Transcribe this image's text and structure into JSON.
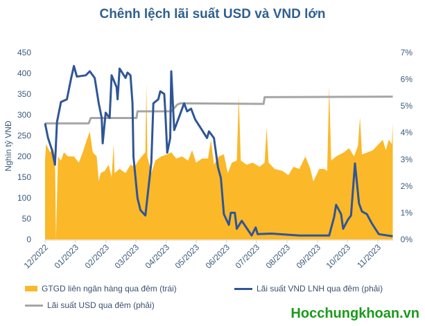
{
  "chart_data": {
    "type": "area+line",
    "title": "Chênh lệch lãi suất USD và VND lớn",
    "ylabel_left": "Nghìn tỷ VNĐ",
    "ylim_left": [
      0,
      450
    ],
    "yticks_left": [
      "0",
      "50",
      "100",
      "150",
      "200",
      "250",
      "300",
      "350",
      "400",
      "450"
    ],
    "ylim_right": [
      0,
      7
    ],
    "yticks_right": [
      "0%",
      "1%",
      "2%",
      "3%",
      "4%",
      "5%",
      "6%",
      "7%"
    ],
    "xlim": [
      "2022-12-01",
      "2023-11-16"
    ],
    "xticks": [
      "12/2022",
      "01/2023",
      "02/2023",
      "03/2023",
      "04/2023",
      "05/2023",
      "06/2023",
      "07/2023",
      "08/2023",
      "09/2023",
      "10/2023",
      "11/2023"
    ],
    "grid": false,
    "legend_position": "bottom",
    "colors": {
      "area": "#fbb829",
      "vnd": "#2f5597",
      "usd": "#a5a5a5",
      "title": "#2f5f8f"
    },
    "series": [
      {
        "name": "GTGD liên ngân hàng qua đêm (trái)",
        "axis": "left",
        "kind": "area",
        "x": [
          "2022-12-01",
          "2022-12-02",
          "2022-12-06",
          "2022-12-09",
          "2022-12-11",
          "2022-12-12",
          "2022-12-14",
          "2022-12-17",
          "2022-12-20",
          "2022-12-24",
          "2022-12-30",
          "2023-01-04",
          "2023-01-08",
          "2023-01-12",
          "2023-01-15",
          "2023-01-18",
          "2023-01-22",
          "2023-01-24",
          "2023-01-26",
          "2023-01-30",
          "2023-02-03",
          "2023-02-06",
          "2023-02-08",
          "2023-02-09",
          "2023-02-14",
          "2023-02-20",
          "2023-02-25",
          "2023-03-01",
          "2023-03-05",
          "2023-03-10",
          "2023-03-12",
          "2023-03-13",
          "2023-03-14",
          "2023-03-18",
          "2023-03-22",
          "2023-03-28",
          "2023-04-03",
          "2023-04-07",
          "2023-04-12",
          "2023-04-18",
          "2023-04-24",
          "2023-04-28",
          "2023-05-02",
          "2023-05-08",
          "2023-05-14",
          "2023-05-17",
          "2023-05-20",
          "2023-05-25",
          "2023-05-30",
          "2023-06-03",
          "2023-06-07",
          "2023-06-12",
          "2023-06-14",
          "2023-06-16",
          "2023-06-22",
          "2023-06-28",
          "2023-07-05",
          "2023-07-10",
          "2023-07-12",
          "2023-07-14",
          "2023-07-20",
          "2023-07-28",
          "2023-08-03",
          "2023-08-08",
          "2023-08-14",
          "2023-08-20",
          "2023-08-25",
          "2023-08-28",
          "2023-09-03",
          "2023-09-08",
          "2023-09-11",
          "2023-09-13",
          "2023-09-15",
          "2023-09-20",
          "2023-09-28",
          "2023-10-03",
          "2023-10-08",
          "2023-10-12",
          "2023-10-14",
          "2023-10-16",
          "2023-10-22",
          "2023-10-27",
          "2023-11-02",
          "2023-11-06",
          "2023-11-09",
          "2023-11-12",
          "2023-11-15",
          "2023-11-16"
        ],
        "values": [
          190,
          230,
          210,
          220,
          200,
          0,
          200,
          190,
          210,
          200,
          200,
          185,
          210,
          240,
          260,
          210,
          200,
          140,
          160,
          165,
          180,
          150,
          230,
          160,
          170,
          160,
          180,
          175,
          190,
          205,
          210,
          375,
          200,
          160,
          190,
          200,
          205,
          210,
          195,
          200,
          190,
          215,
          185,
          195,
          195,
          240,
          180,
          200,
          205,
          160,
          185,
          190,
          345,
          190,
          180,
          185,
          175,
          185,
          270,
          185,
          170,
          165,
          155,
          175,
          170,
          200,
          170,
          140,
          170,
          170,
          165,
          370,
          190,
          200,
          210,
          220,
          200,
          225,
          295,
          205,
          210,
          215,
          230,
          240,
          215,
          240,
          230,
          280
        ]
      },
      {
        "name": "Lãi suất VND LNH qua đêm (phải)",
        "axis": "right",
        "kind": "line",
        "x": [
          "2022-12-01",
          "2022-12-04",
          "2022-12-08",
          "2022-12-11",
          "2022-12-13",
          "2022-12-17",
          "2022-12-23",
          "2022-12-27",
          "2022-12-30",
          "2023-01-02",
          "2023-01-11",
          "2023-01-15",
          "2023-01-20",
          "2023-01-24",
          "2023-01-27",
          "2023-01-28",
          "2023-01-31",
          "2023-02-04",
          "2023-02-06",
          "2023-02-11",
          "2023-02-12",
          "2023-02-14",
          "2023-02-20",
          "2023-02-22",
          "2023-02-25",
          "2023-02-27",
          "2023-02-28",
          "2023-03-04",
          "2023-03-07",
          "2023-03-12",
          "2023-03-18",
          "2023-03-20",
          "2023-03-25",
          "2023-03-27",
          "2023-03-31",
          "2023-04-01",
          "2023-04-03",
          "2023-04-06",
          "2023-04-07",
          "2023-04-10",
          "2023-04-13",
          "2023-04-20",
          "2023-04-23",
          "2023-04-27",
          "2023-05-01",
          "2023-05-08",
          "2023-05-13",
          "2023-05-15",
          "2023-05-20",
          "2023-05-24",
          "2023-05-27",
          "2023-05-30",
          "2023-06-04",
          "2023-06-06",
          "2023-06-10",
          "2023-06-12",
          "2023-06-17",
          "2023-06-27",
          "2023-07-01",
          "2023-07-03",
          "2023-07-17",
          "2023-08-14",
          "2023-09-13",
          "2023-09-18",
          "2023-09-20",
          "2023-09-25",
          "2023-09-27",
          "2023-10-02",
          "2023-10-05",
          "2023-10-09",
          "2023-10-13",
          "2023-10-16",
          "2023-10-21",
          "2023-10-26",
          "2023-11-02",
          "2023-11-16"
        ],
        "values": [
          4.35,
          3.8,
          3.35,
          2.8,
          4.4,
          5.15,
          5.25,
          6.0,
          6.5,
          6.1,
          6.15,
          6.3,
          6.05,
          5.1,
          4.55,
          3.6,
          4.75,
          4.55,
          6.15,
          5.7,
          5.25,
          6.4,
          6.05,
          6.25,
          6.15,
          5.1,
          3.1,
          1.55,
          1.1,
          0.9,
          2.9,
          5.1,
          5.25,
          5.55,
          5.45,
          4.8,
          3.25,
          3.8,
          6.3,
          4.1,
          4.4,
          5.1,
          4.8,
          4.9,
          4.5,
          4.1,
          3.8,
          4.05,
          3.8,
          2.72,
          2.3,
          0.95,
          0.55,
          1.0,
          1.0,
          0.4,
          0.7,
          0.15,
          0.45,
          0.2,
          0.22,
          0.15,
          0.15,
          0.85,
          1.3,
          0.95,
          0.4,
          0.75,
          0.9,
          2.85,
          1.35,
          1.05,
          0.95,
          0.6,
          0.2,
          0.12
        ]
      },
      {
        "name": "Lãi suất USD qua đêm (phải)",
        "axis": "right",
        "kind": "line",
        "x": [
          "2022-12-01",
          "2023-01-14",
          "2023-01-16",
          "2023-03-03",
          "2023-03-04",
          "2023-04-07",
          "2023-04-13",
          "2023-04-16",
          "2023-07-09",
          "2023-07-10",
          "2023-11-16"
        ],
        "values": [
          4.35,
          4.35,
          4.55,
          4.55,
          4.8,
          4.8,
          5.05,
          5.1,
          5.08,
          5.33,
          5.35
        ]
      }
    ]
  },
  "watermark": "Hocchungkhoan.vn"
}
